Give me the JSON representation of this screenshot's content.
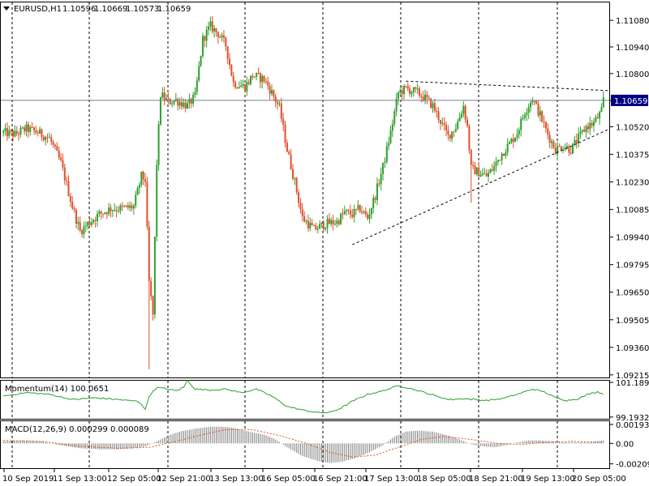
{
  "header": {
    "symbol": "EURUSD,H1",
    "ohlc_values": [
      "1.10596",
      "1.10669",
      "1.10573",
      "1.10659"
    ]
  },
  "colors": {
    "bull": "#2ca02c",
    "bear": "#e0502a",
    "grid_line": "#000000",
    "price_line": "#708090",
    "momentum_line": "#2ca02c",
    "macd_histogram": "#808080",
    "macd_signal": "#e0502a",
    "current_price_label_bg": "#000080",
    "current_price_label_text": "#ffffff",
    "trendline": "#000000"
  },
  "chart_data": [
    {
      "type": "candlestick",
      "title": "EURUSD,H1",
      "ylim": [
        1.0921,
        1.1117
      ],
      "y_tick_labels": [
        "1.11080",
        "1.10940",
        "1.10800",
        "1.10659",
        "1.10520",
        "1.10375",
        "1.10230",
        "1.10085",
        "1.09940",
        "1.09795",
        "1.09650",
        "1.09505",
        "1.09360",
        "1.09215"
      ],
      "y_ticks": [
        1.1108,
        1.1094,
        1.108,
        1.10659,
        1.1052,
        1.10375,
        1.1023,
        1.10085,
        1.0994,
        1.09795,
        1.0965,
        1.09505,
        1.0936,
        1.09215
      ],
      "current_price": "1.10659",
      "x_tick_labels": [
        "10 Sep 2019",
        "11 Sep 13:00",
        "12 Sep 05:00",
        "12 Sep 21:00",
        "13 Sep 13:00",
        "16 Sep 05:00",
        "16 Sep 21:00",
        "17 Sep 13:00",
        "18 Sep 05:00",
        "18 Sep 21:00",
        "19 Sep 13:00",
        "20 Sep 05:00"
      ],
      "series": [
        {
          "values_close_path": [
            [
              0,
              1.1049
            ],
            [
              6,
              1.1048
            ],
            [
              12,
              1.1051
            ],
            [
              18,
              1.1049
            ],
            [
              24,
              1.1046
            ],
            [
              30,
              1.1033
            ],
            [
              36,
              1.101
            ],
            [
              40,
              1.0997
            ],
            [
              44,
              1.1001
            ],
            [
              50,
              1.1006
            ],
            [
              56,
              1.1009
            ],
            [
              62,
              1.1009
            ],
            [
              68,
              1.101
            ],
            [
              72,
              1.1026
            ],
            [
              74,
              1.1024
            ],
            [
              76,
              1.097
            ],
            [
              78,
              1.0953
            ],
            [
              80,
              1.1033
            ],
            [
              82,
              1.1069
            ],
            [
              86,
              1.1065
            ],
            [
              90,
              1.1066
            ],
            [
              96,
              1.1063
            ],
            [
              100,
              1.1068
            ],
            [
              104,
              1.1098
            ],
            [
              108,
              1.1105
            ],
            [
              112,
              1.1101
            ],
            [
              116,
              1.1095
            ],
            [
              120,
              1.1075
            ],
            [
              126,
              1.1073
            ],
            [
              130,
              1.1079
            ],
            [
              136,
              1.1077
            ],
            [
              140,
              1.107
            ],
            [
              144,
              1.1062
            ],
            [
              148,
              1.104
            ],
            [
              152,
              1.1023
            ],
            [
              156,
              1.1004
            ],
            [
              162,
              1.0998
            ],
            [
              168,
              1.1001
            ],
            [
              174,
              1.1002
            ],
            [
              178,
              1.1007
            ],
            [
              182,
              1.1006
            ],
            [
              186,
              1.1009
            ],
            [
              190,
              1.1004
            ],
            [
              194,
              1.1016
            ],
            [
              198,
              1.1031
            ],
            [
              202,
              1.1049
            ],
            [
              206,
              1.107
            ],
            [
              210,
              1.1072
            ],
            [
              216,
              1.107
            ],
            [
              220,
              1.1067
            ],
            [
              224,
              1.1063
            ],
            [
              228,
              1.1055
            ],
            [
              232,
              1.1047
            ],
            [
              236,
              1.1052
            ],
            [
              240,
              1.1063
            ],
            [
              242,
              1.1052
            ],
            [
              244,
              1.103
            ],
            [
              248,
              1.1028
            ],
            [
              252,
              1.1026
            ],
            [
              256,
              1.1031
            ],
            [
              260,
              1.1038
            ],
            [
              264,
              1.1043
            ],
            [
              268,
              1.1049
            ],
            [
              272,
              1.106
            ],
            [
              276,
              1.1067
            ],
            [
              280,
              1.1058
            ],
            [
              284,
              1.1048
            ],
            [
              288,
              1.104
            ],
            [
              292,
              1.1042
            ],
            [
              296,
              1.104
            ],
            [
              300,
              1.1046
            ],
            [
              304,
              1.1052
            ],
            [
              308,
              1.1054
            ],
            [
              312,
              1.106
            ],
            [
              313,
              1.1066
            ]
          ],
          "name": ""
        }
      ],
      "annotations": [
        {
          "type": "trendline",
          "from": [
            182,
            1.099
          ],
          "to": [
            313,
            1.1051
          ],
          "style": "dashed"
        },
        {
          "type": "trendline",
          "from": [
            210,
            1.1076
          ],
          "to": [
            313,
            1.1071
          ],
          "style": "dashed"
        },
        {
          "type": "horizontal_line",
          "value": 1.10659
        }
      ]
    },
    {
      "type": "line",
      "title": "Momentum(14) 100.0651",
      "ylim": [
        99.14,
        101.24
      ],
      "y_tick_labels": [
        "101.1899",
        "99.1932"
      ],
      "y_ticks": [
        101.1899,
        99.1932
      ],
      "series": [
        {
          "name": "Momentum(14)",
          "values": [
            [
              0,
              100.4
            ],
            [
              12,
              100.6
            ],
            [
              24,
              100.5
            ],
            [
              36,
              100.2
            ],
            [
              48,
              100.3
            ],
            [
              60,
              100.2
            ],
            [
              70,
              100.1
            ],
            [
              72,
              99.95
            ],
            [
              74,
              99.6
            ],
            [
              76,
              100.4
            ],
            [
              80,
              100.9
            ],
            [
              86,
              100.8
            ],
            [
              90,
              100.7
            ],
            [
              94,
              100.9
            ],
            [
              96,
              101.3
            ],
            [
              100,
              100.8
            ],
            [
              108,
              100.75
            ],
            [
              116,
              100.8
            ],
            [
              124,
              100.6
            ],
            [
              132,
              100.8
            ],
            [
              140,
              100.4
            ],
            [
              148,
              99.8
            ],
            [
              156,
              99.6
            ],
            [
              164,
              99.45
            ],
            [
              170,
              99.45
            ],
            [
              176,
              99.7
            ],
            [
              182,
              100.1
            ],
            [
              190,
              100.5
            ],
            [
              198,
              100.7
            ],
            [
              206,
              101.0
            ],
            [
              212,
              100.85
            ],
            [
              220,
              100.6
            ],
            [
              226,
              100.4
            ],
            [
              232,
              100.2
            ],
            [
              240,
              100.25
            ],
            [
              246,
              100.2
            ],
            [
              252,
              100.15
            ],
            [
              260,
              100.25
            ],
            [
              268,
              100.5
            ],
            [
              276,
              100.8
            ],
            [
              282,
              100.65
            ],
            [
              288,
              100.3
            ],
            [
              294,
              100.15
            ],
            [
              300,
              100.25
            ],
            [
              306,
              100.55
            ],
            [
              310,
              100.65
            ],
            [
              313,
              100.5
            ]
          ]
        }
      ]
    },
    {
      "type": "bar",
      "title": "MACD(12,26,9) 0.000299 0.000089",
      "ylim": [
        -0.00245,
        0.00218
      ],
      "y_tick_labels": [
        "0.00193",
        "0.00",
        "-0.00209"
      ],
      "y_ticks": [
        0.00193,
        0.0,
        -0.00209
      ],
      "series": [
        {
          "name": "MACD",
          "values": [
            [
              0,
              0.0002
            ],
            [
              10,
              0.0003
            ],
            [
              20,
              0.0002
            ],
            [
              30,
              -0.0002
            ],
            [
              40,
              -0.0005
            ],
            [
              50,
              -0.0006
            ],
            [
              60,
              -0.0006
            ],
            [
              68,
              -0.0005
            ],
            [
              74,
              -0.0003
            ],
            [
              80,
              0.0002
            ],
            [
              86,
              0.0008
            ],
            [
              92,
              0.0012
            ],
            [
              100,
              0.0015
            ],
            [
              108,
              0.0017
            ],
            [
              114,
              0.0017
            ],
            [
              120,
              0.0016
            ],
            [
              128,
              0.0012
            ],
            [
              136,
              0.0009
            ],
            [
              142,
              0.0004
            ],
            [
              148,
              -0.0004
            ],
            [
              156,
              -0.0013
            ],
            [
              164,
              -0.0018
            ],
            [
              170,
              -0.002
            ],
            [
              176,
              -0.0019
            ],
            [
              182,
              -0.0016
            ],
            [
              190,
              -0.001
            ],
            [
              198,
              -0.0002
            ],
            [
              204,
              0.0007
            ],
            [
              210,
              0.0012
            ],
            [
              216,
              0.0013
            ],
            [
              224,
              0.0012
            ],
            [
              232,
              0.0008
            ],
            [
              238,
              0.0004
            ],
            [
              244,
              -0.0001
            ],
            [
              250,
              -0.0003
            ],
            [
              256,
              -0.0004
            ],
            [
              262,
              -0.0002
            ],
            [
              268,
              0.0001
            ],
            [
              274,
              0.0003
            ],
            [
              280,
              0.0003
            ],
            [
              286,
              0.0002
            ],
            [
              292,
              0.0001
            ],
            [
              298,
              0.0001
            ],
            [
              304,
              0.0001
            ],
            [
              313,
              0.0003
            ]
          ]
        },
        {
          "name": "Signal",
          "values": [
            [
              0,
              0.0003
            ],
            [
              20,
              0.0002
            ],
            [
              40,
              -0.0003
            ],
            [
              60,
              -0.0005
            ],
            [
              76,
              -0.0004
            ],
            [
              90,
              0.0002
            ],
            [
              104,
              0.0009
            ],
            [
              116,
              0.0014
            ],
            [
              130,
              0.0014
            ],
            [
              144,
              0.0008
            ],
            [
              158,
              0.0
            ],
            [
              170,
              -0.0009
            ],
            [
              182,
              -0.0014
            ],
            [
              194,
              -0.0012
            ],
            [
              206,
              -0.0004
            ],
            [
              218,
              0.0004
            ],
            [
              230,
              0.0007
            ],
            [
              244,
              0.0004
            ],
            [
              258,
              0.0
            ],
            [
              270,
              -0.0001
            ],
            [
              282,
              0.0001
            ],
            [
              296,
              0.0002
            ],
            [
              313,
              0.0001
            ]
          ]
        }
      ]
    }
  ]
}
